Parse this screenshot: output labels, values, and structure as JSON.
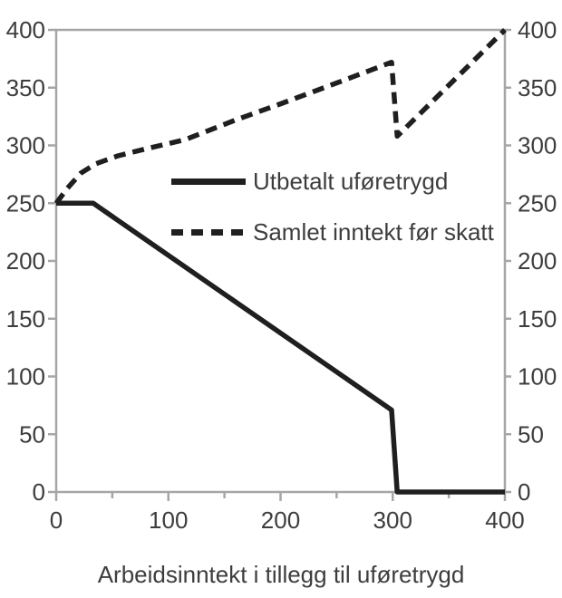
{
  "chart_data": {
    "type": "line",
    "title": "",
    "xlabel": "Arbeidsinntekt i tillegg til uføretrygd",
    "ylabel": "",
    "xlim": [
      0,
      400
    ],
    "ylim": [
      0,
      400
    ],
    "x_major_ticks": [
      0,
      100,
      200,
      300,
      400
    ],
    "x_minor_ticks": [
      50,
      150,
      250,
      350
    ],
    "y_ticks": [
      0,
      50,
      100,
      150,
      200,
      250,
      300,
      350,
      400
    ],
    "y_axis_sides": [
      "left",
      "right"
    ],
    "grid": false,
    "legend_position": "inside-upper-middle",
    "series": [
      {
        "name": "Utbetalt uføretrygd",
        "line_style": "solid",
        "color": "#1f1f1f",
        "points": [
          [
            0,
            250
          ],
          [
            33,
            250
          ],
          [
            299,
            71
          ],
          [
            304,
            0
          ],
          [
            400,
            0
          ]
        ]
      },
      {
        "name": "Samlet inntekt før skatt",
        "line_style": "dashed",
        "color": "#1f1f1f",
        "points": [
          [
            0,
            250
          ],
          [
            10,
            263
          ],
          [
            22,
            276
          ],
          [
            35,
            284
          ],
          [
            55,
            291
          ],
          [
            80,
            297
          ],
          [
            115,
            305
          ],
          [
            160,
            322
          ],
          [
            200,
            336
          ],
          [
            250,
            354
          ],
          [
            299,
            372
          ],
          [
            304,
            308
          ],
          [
            400,
            400
          ]
        ]
      }
    ]
  },
  "colors": {
    "line": "#1f1f1f",
    "axis": "#a6a6a6",
    "text": "#3d3d3d",
    "background": "#ffffff"
  }
}
